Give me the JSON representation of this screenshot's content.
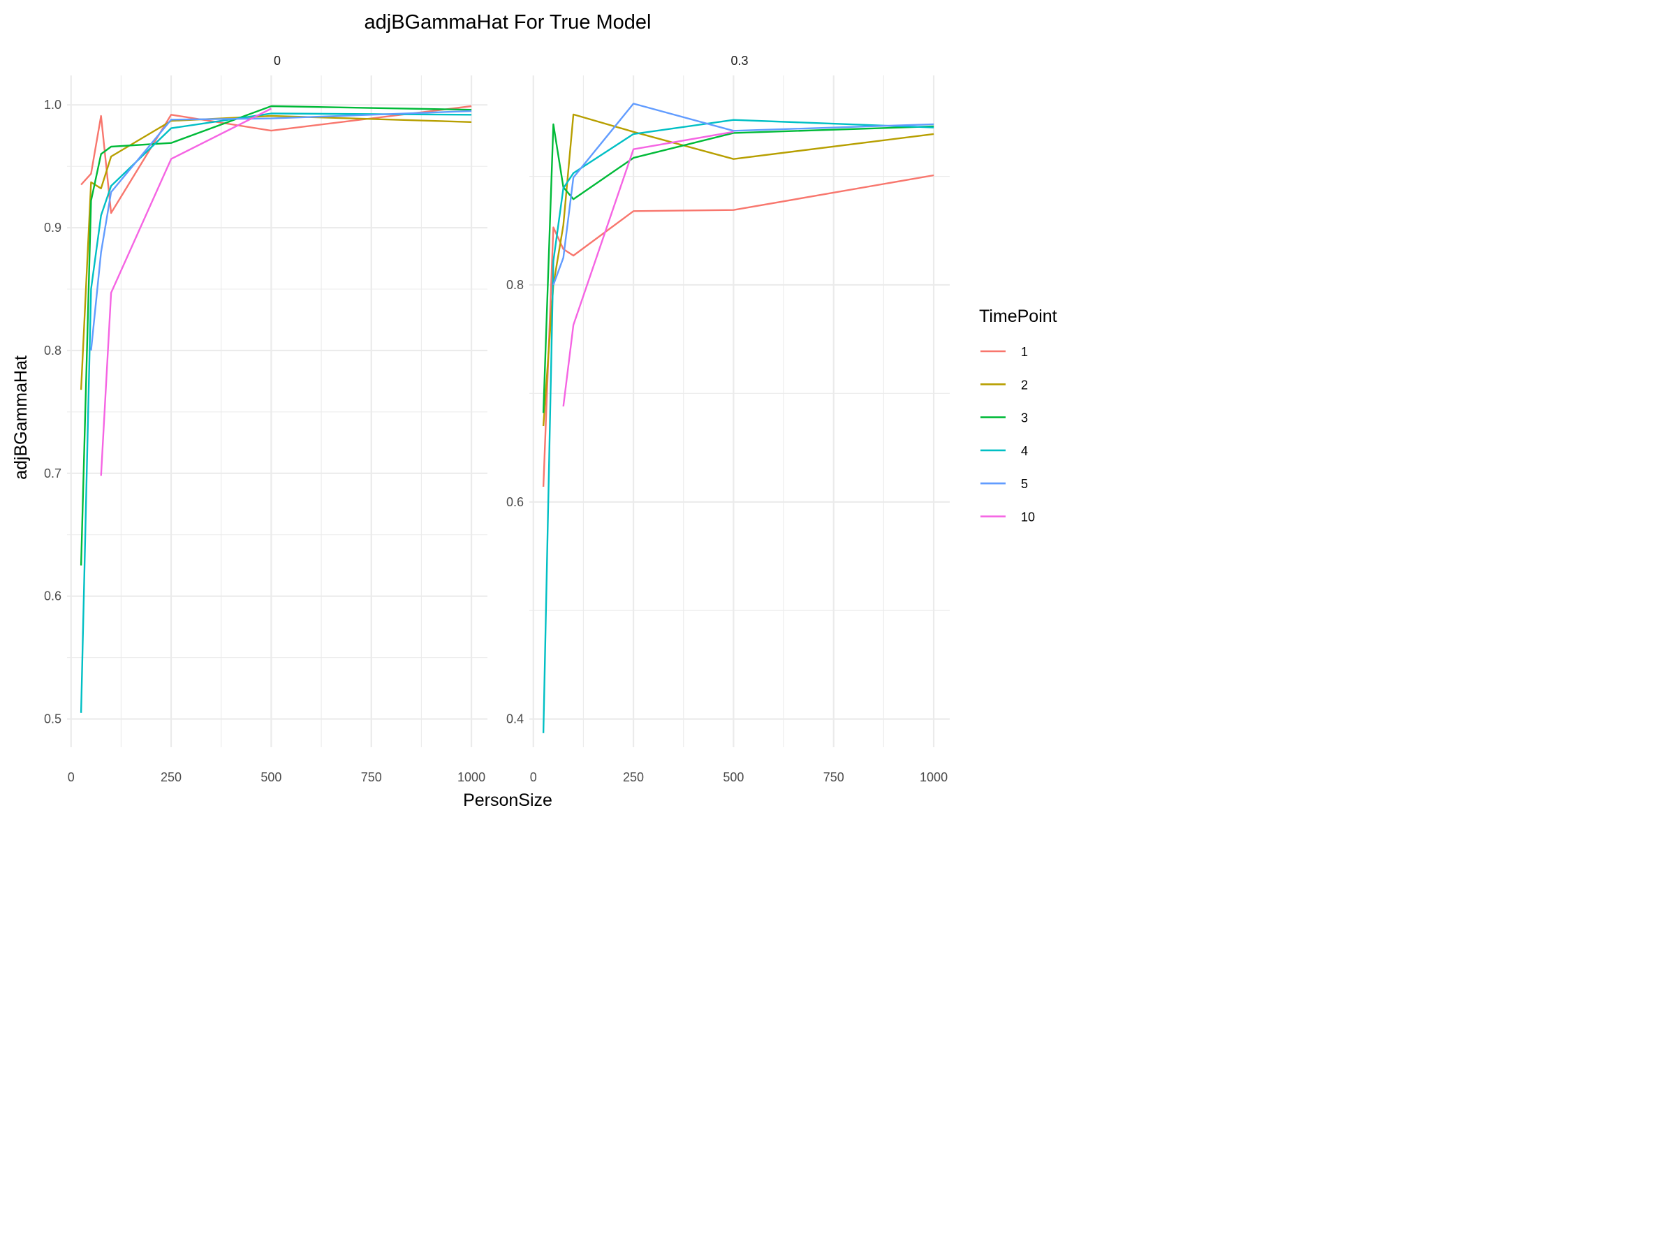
{
  "chart_data": {
    "type": "line",
    "title": "adjBGammaHat For True Model",
    "xlabel": "PersonSize",
    "ylabel": "adjBGammaHat",
    "grid": true,
    "legend": {
      "title": "TimePoint",
      "position": "right",
      "entries": [
        {
          "name": "1",
          "color": "#F8766D"
        },
        {
          "name": "2",
          "color": "#B79F00"
        },
        {
          "name": "3",
          "color": "#00BA38"
        },
        {
          "name": "4",
          "color": "#00BFC4"
        },
        {
          "name": "5",
          "color": "#619CFF"
        },
        {
          "name": "10",
          "color": "#F564E3"
        }
      ]
    },
    "panels": [
      {
        "label": "0",
        "xlim": [
          -10,
          1040
        ],
        "ylim": [
          0.477,
          1.024
        ],
        "x_ticks": [
          0,
          250,
          500,
          750,
          1000
        ],
        "x_tick_labels": [
          "0",
          "250",
          "500",
          "750",
          "1000"
        ],
        "y_ticks": [
          0.5,
          0.6,
          0.7,
          0.8,
          0.9,
          1.0
        ],
        "y_tick_labels": [
          "0.5",
          "0.6",
          "0.7",
          "0.8",
          "0.9",
          "1.0"
        ],
        "series": [
          {
            "name": "1",
            "x": [
              25,
              50,
              75,
              100,
              250,
              500,
              1000
            ],
            "y": [
              0.935,
              0.944,
              0.991,
              0.912,
              0.992,
              0.979,
              0.999
            ]
          },
          {
            "name": "2",
            "x": [
              25,
              50,
              75,
              100,
              250,
              500,
              1000
            ],
            "y": [
              0.768,
              0.937,
              0.932,
              0.958,
              0.987,
              0.991,
              0.986
            ]
          },
          {
            "name": "3",
            "x": [
              25,
              50,
              75,
              100,
              250,
              500,
              1000
            ],
            "y": [
              0.625,
              0.922,
              0.96,
              0.966,
              0.969,
              0.999,
              0.996
            ]
          },
          {
            "name": "4",
            "x": [
              25,
              50,
              75,
              100,
              250,
              500,
              1000
            ],
            "y": [
              0.505,
              0.85,
              0.91,
              0.934,
              0.981,
              0.993,
              0.992
            ]
          },
          {
            "name": "5",
            "x": [
              50,
              75,
              100,
              250,
              500,
              1000
            ],
            "y": [
              0.8,
              0.88,
              0.929,
              0.988,
              0.989,
              0.995
            ]
          },
          {
            "name": "10",
            "x": [
              75,
              100,
              250,
              500
            ],
            "y": [
              0.698,
              0.847,
              0.956,
              0.997
            ]
          }
        ]
      },
      {
        "label": "0.3",
        "xlim": [
          -10,
          1040
        ],
        "ylim": [
          0.374,
          0.993
        ],
        "x_ticks": [
          0,
          250,
          500,
          750,
          1000
        ],
        "x_tick_labels": [
          "0",
          "250",
          "500",
          "750",
          "1000"
        ],
        "y_ticks": [
          0.4,
          0.6,
          0.8
        ],
        "y_tick_labels": [
          "0.4",
          "0.6",
          "0.8"
        ],
        "series": [
          {
            "name": "1",
            "x": [
              25,
              50,
              75,
              100,
              250,
              500,
              1000
            ],
            "y": [
              0.614,
              0.853,
              0.833,
              0.827,
              0.868,
              0.869,
              0.901
            ]
          },
          {
            "name": "2",
            "x": [
              25,
              50,
              75,
              100,
              250,
              500,
              1000
            ],
            "y": [
              0.67,
              0.8,
              0.855,
              0.957,
              0.941,
              0.916,
              0.939
            ]
          },
          {
            "name": "3",
            "x": [
              25,
              50,
              75,
              100,
              250,
              500,
              1000
            ],
            "y": [
              0.682,
              0.948,
              0.89,
              0.879,
              0.917,
              0.94,
              0.946
            ]
          },
          {
            "name": "4",
            "x": [
              25,
              50,
              75,
              100,
              250,
              500,
              1000
            ],
            "y": [
              0.387,
              0.822,
              0.889,
              0.903,
              0.939,
              0.952,
              0.945
            ]
          },
          {
            "name": "5",
            "x": [
              50,
              75,
              100,
              250,
              500,
              1000
            ],
            "y": [
              0.8,
              0.825,
              0.899,
              0.967,
              0.942,
              0.948
            ]
          },
          {
            "name": "10",
            "x": [
              75,
              100,
              250,
              500
            ],
            "y": [
              0.688,
              0.763,
              0.925,
              0.941
            ]
          }
        ]
      }
    ]
  }
}
